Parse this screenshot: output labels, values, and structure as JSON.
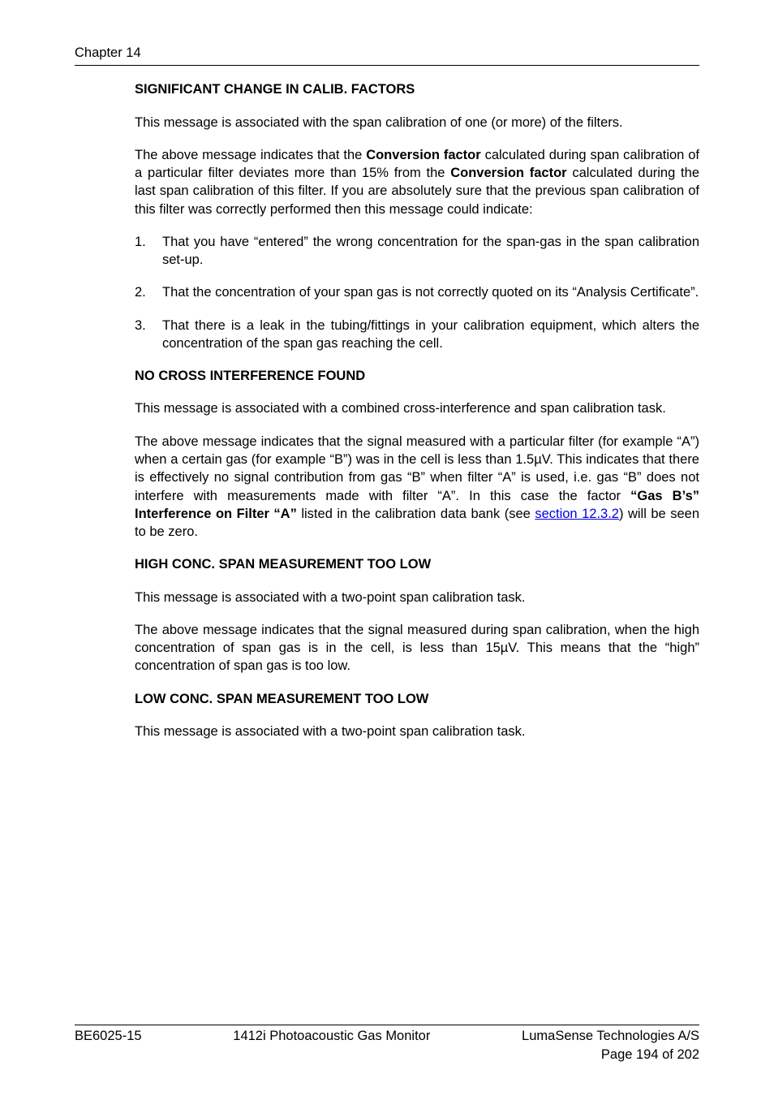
{
  "header": {
    "label": "Chapter 14"
  },
  "sections": {
    "sig_change": {
      "heading": "SIGNIFICANT CHANGE IN CALIB. FACTORS",
      "p1": "This message is associated with the span calibration of one (or more) of the filters.",
      "p2_a": "The above message indicates that the ",
      "p2_b": "Conversion factor",
      "p2_c": " calculated during span calibration of a particular filter deviates more than 15% from the ",
      "p2_d": "Conversion factor",
      "p2_e": " calculated during the last span calibration of this filter. If you are absolutely sure that the previous span calibration of this filter was correctly performed then this message could indicate:",
      "li1_n": "1.",
      "li1_t": "That you have “entered” the wrong concentration for the span-gas in the span calibration set-up.",
      "li2_n": "2.",
      "li2_t": "That the concentration of your span gas is not correctly quoted on its “Analysis Certificate”.",
      "li3_n": "3.",
      "li3_t": "That there is a leak in the tubing/fittings in your calibration equipment, which alters the concentration of the span gas reaching the cell."
    },
    "no_cross": {
      "heading": "NO CROSS INTERFERENCE FOUND",
      "p1": "This message is associated with a combined cross-interference and span calibration task.",
      "p2_a": "The above message indicates that the signal measured with a particular filter (for example “A”) when a certain gas (for example “B”) was in the cell is less than 1.5µV. This indicates that there is effectively no signal contribution from gas “B” when filter “A” is used, i.e. gas “B” does not interfere with measurements made with filter “A”. In this case the factor ",
      "p2_b": "“Gas B’s” Interference on Filter “A”",
      "p2_c": " listed in the calibration data bank (see ",
      "p2_link": "section 12.3.2",
      "p2_d": ") will be seen to be zero."
    },
    "high_conc": {
      "heading": "HIGH CONC. SPAN MEASUREMENT TOO LOW",
      "p1": "This message is associated with a two-point span calibration task.",
      "p2": "The above message indicates that the signal measured during span calibration, when the high concentration of span gas is in the cell, is less than 15µV. This means that the “high” concentration of span gas is too low."
    },
    "low_conc": {
      "heading": "LOW CONC. SPAN MEASUREMENT TOO LOW",
      "p1": "This message is associated with a two-point span calibration task."
    }
  },
  "footer": {
    "left": "BE6025-15",
    "center": "1412i Photoacoustic Gas Monitor",
    "right": "LumaSense Technologies A/S",
    "page": "Page 194 of 202"
  }
}
